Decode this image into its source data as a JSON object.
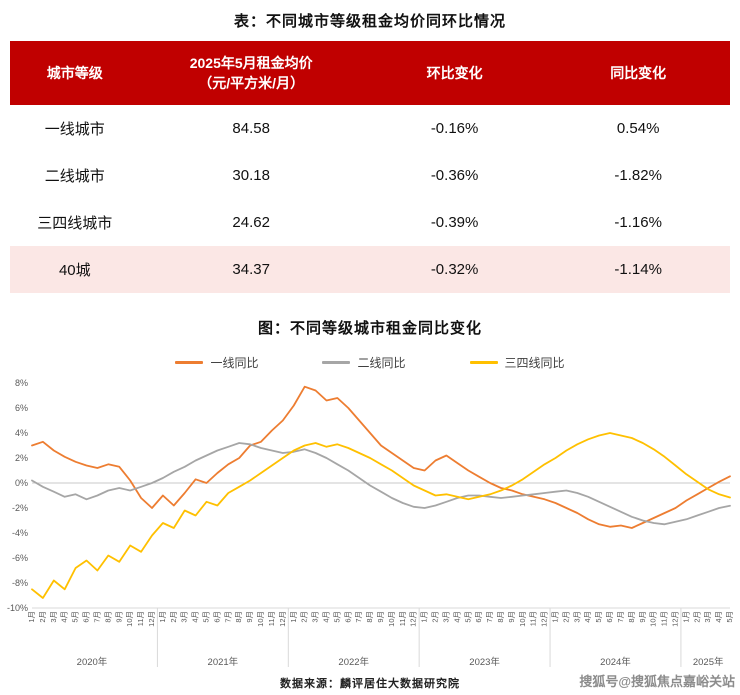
{
  "titles": {
    "table_title": "表：不同城市等级租金均价同环比情况",
    "chart_title": "图：不同等级城市租金同比变化",
    "source": "数据来源：麟评居住大数据研究院",
    "watermark": "搜狐号@搜狐焦点嘉峪关站"
  },
  "colors": {
    "header_bg": "#c00000",
    "highlight_row_bg": "#fbe7e5",
    "zero_line": "#c9c9c9",
    "axis_text": "#595959"
  },
  "table": {
    "headers": {
      "tier": "城市等级",
      "price_line1": "2025年5月租金均价",
      "price_line2": "（元/平方米/月）",
      "mom": "环比变化",
      "yoy": "同比变化"
    },
    "rows": [
      {
        "tier": "一线城市",
        "price": "84.58",
        "mom": "-0.16%",
        "yoy": "0.54%"
      },
      {
        "tier": "二线城市",
        "price": "30.18",
        "mom": "-0.36%",
        "yoy": "-1.82%"
      },
      {
        "tier": "三四线城市",
        "price": "24.62",
        "mom": "-0.39%",
        "yoy": "-1.16%"
      },
      {
        "tier": "40城",
        "price": "34.37",
        "mom": "-0.32%",
        "yoy": "-1.14%"
      }
    ]
  },
  "chart_data": {
    "type": "line",
    "title": "图：不同等级城市租金同比变化",
    "xlabel": "",
    "ylabel": "",
    "ylim": [
      -10,
      8
    ],
    "ytick_step": 2,
    "ytick_suffix": "%",
    "grid": "zero-line-only",
    "legend_position": "top",
    "years": [
      {
        "label": "2020年",
        "count": 12
      },
      {
        "label": "2021年",
        "count": 12
      },
      {
        "label": "2022年",
        "count": 12
      },
      {
        "label": "2023年",
        "count": 12
      },
      {
        "label": "2024年",
        "count": 12
      },
      {
        "label": "2025年",
        "count": 5
      }
    ],
    "x_labels": [
      "1月",
      "2月",
      "3月",
      "4月",
      "5月",
      "6月",
      "7月",
      "8月",
      "9月",
      "10月",
      "11月",
      "12月",
      "1月",
      "2月",
      "3月",
      "4月",
      "5月",
      "6月",
      "7月",
      "8月",
      "9月",
      "10月",
      "11月",
      "12月",
      "1月",
      "2月",
      "3月",
      "4月",
      "5月",
      "6月",
      "7月",
      "8月",
      "9月",
      "10月",
      "11月",
      "12月",
      "1月",
      "2月",
      "3月",
      "4月",
      "5月",
      "6月",
      "7月",
      "8月",
      "9月",
      "10月",
      "11月",
      "12月",
      "1月",
      "2月",
      "3月",
      "4月",
      "5月",
      "6月",
      "7月",
      "8月",
      "9月",
      "10月",
      "11月",
      "12月",
      "1月",
      "2月",
      "3月",
      "4月",
      "5月"
    ],
    "series": [
      {
        "name": "一线同比",
        "color": "#ED7D31",
        "values": [
          3.0,
          3.3,
          2.6,
          2.1,
          1.7,
          1.4,
          1.2,
          1.5,
          1.3,
          0.2,
          -1.2,
          -2.0,
          -1.0,
          -1.8,
          -0.8,
          0.3,
          0.0,
          0.8,
          1.5,
          2.0,
          3.0,
          3.3,
          4.2,
          5.0,
          6.2,
          7.7,
          7.4,
          6.6,
          6.8,
          6.0,
          5.0,
          4.0,
          3.0,
          2.4,
          1.8,
          1.2,
          1.0,
          1.8,
          2.2,
          1.6,
          1.0,
          0.5,
          0.0,
          -0.4,
          -0.6,
          -0.9,
          -1.1,
          -1.3,
          -1.6,
          -2.0,
          -2.4,
          -2.9,
          -3.3,
          -3.5,
          -3.4,
          -3.6,
          -3.2,
          -2.8,
          -2.4,
          -2.0,
          -1.4,
          -0.9,
          -0.4,
          0.1,
          0.54
        ]
      },
      {
        "name": "二线同比",
        "color": "#A6A6A6",
        "values": [
          0.2,
          -0.3,
          -0.7,
          -1.1,
          -0.9,
          -1.3,
          -1.0,
          -0.6,
          -0.4,
          -0.6,
          -0.3,
          0.0,
          0.4,
          0.9,
          1.3,
          1.8,
          2.2,
          2.6,
          2.9,
          3.2,
          3.1,
          2.8,
          2.6,
          2.4,
          2.5,
          2.7,
          2.4,
          2.0,
          1.5,
          1.0,
          0.4,
          -0.2,
          -0.7,
          -1.2,
          -1.6,
          -1.9,
          -2.0,
          -1.8,
          -1.5,
          -1.2,
          -1.0,
          -1.0,
          -1.1,
          -1.2,
          -1.1,
          -1.0,
          -0.9,
          -0.8,
          -0.7,
          -0.6,
          -0.8,
          -1.1,
          -1.5,
          -1.9,
          -2.3,
          -2.7,
          -3.0,
          -3.2,
          -3.3,
          -3.1,
          -2.9,
          -2.6,
          -2.3,
          -2.0,
          -1.82
        ]
      },
      {
        "name": "三四线同比",
        "color": "#FFC000",
        "values": [
          -8.5,
          -9.2,
          -7.8,
          -8.5,
          -6.8,
          -6.2,
          -7.0,
          -5.8,
          -6.3,
          -5.0,
          -5.5,
          -4.2,
          -3.2,
          -3.6,
          -2.2,
          -2.6,
          -1.5,
          -1.8,
          -0.8,
          -0.3,
          0.2,
          0.8,
          1.4,
          2.0,
          2.6,
          3.0,
          3.2,
          2.9,
          3.1,
          2.8,
          2.4,
          2.0,
          1.5,
          1.0,
          0.4,
          -0.2,
          -0.6,
          -1.0,
          -0.9,
          -1.1,
          -1.3,
          -1.1,
          -0.9,
          -0.6,
          -0.2,
          0.3,
          0.9,
          1.5,
          2.0,
          2.6,
          3.1,
          3.5,
          3.8,
          4.0,
          3.8,
          3.6,
          3.2,
          2.7,
          2.1,
          1.4,
          0.7,
          0.1,
          -0.5,
          -0.9,
          -1.16
        ]
      }
    ]
  }
}
